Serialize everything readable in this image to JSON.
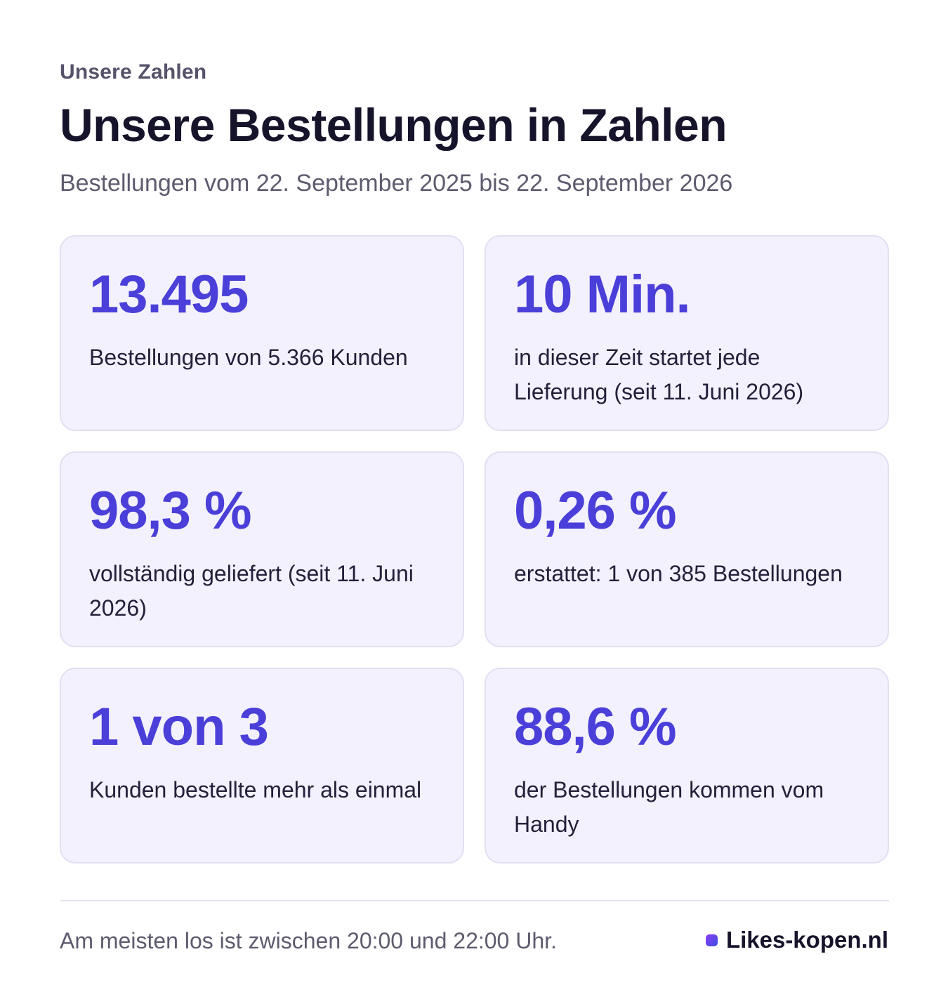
{
  "header": {
    "eyebrow": "Unsere Zahlen",
    "title": "Unsere Bestellungen in Zahlen",
    "subtitle": "Bestellungen vom 22. September 2025 bis 22. September 2026"
  },
  "stats": [
    {
      "value": "13.495",
      "description": "Bestellungen von 5.366 Kunden"
    },
    {
      "value": "10 Min.",
      "description": "in dieser Zeit startet jede Lieferung (seit 11. Juni 2026)"
    },
    {
      "value": "98,3 %",
      "description": "vollständig geliefert (seit 11. Juni 2026)"
    },
    {
      "value": "0,26 %",
      "description": "erstattet: 1 von 385 Bestellungen"
    },
    {
      "value": "1 von 3",
      "description": "Kunden bestellte mehr als einmal"
    },
    {
      "value": "88,6 %",
      "description": "der Bestellungen kommen vom Handy"
    }
  ],
  "footer": {
    "note": "Am meisten los ist zwischen 20:00 und 22:00 Uhr.",
    "brand": "Likes-kopen.nl",
    "brand_icon": "square-dot-icon"
  },
  "colors": {
    "accent": "#4a3fd9",
    "card_background": "#f3f1fd",
    "card_border": "#e2dff3",
    "heading": "#16142b",
    "muted_text": "#5e5b6f"
  }
}
